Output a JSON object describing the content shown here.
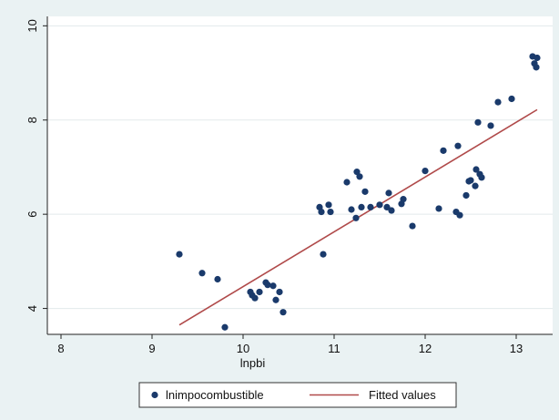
{
  "chart_data": {
    "type": "scatter",
    "xlabel": "lnpbi",
    "ylabel": "",
    "xlim": [
      7.85,
      13.4
    ],
    "ylim": [
      3.45,
      10.2
    ],
    "x_ticks": [
      8,
      9,
      10,
      11,
      12,
      13
    ],
    "y_ticks": [
      4,
      6,
      8,
      10
    ],
    "grid": "horizontal",
    "legend_position": "bottom",
    "background_color": "#eaf2f3",
    "plot_background": "#ffffff",
    "series": [
      {
        "name": "lnimpocombustible",
        "kind": "scatter",
        "color": "#1a3a6b",
        "points": [
          {
            "x": 9.3,
            "y": 5.15
          },
          {
            "x": 9.55,
            "y": 4.75
          },
          {
            "x": 9.72,
            "y": 4.62
          },
          {
            "x": 9.8,
            "y": 3.6
          },
          {
            "x": 10.08,
            "y": 4.35
          },
          {
            "x": 10.1,
            "y": 4.28
          },
          {
            "x": 10.13,
            "y": 4.22
          },
          {
            "x": 10.18,
            "y": 4.35
          },
          {
            "x": 10.25,
            "y": 4.55
          },
          {
            "x": 10.27,
            "y": 4.5
          },
          {
            "x": 10.33,
            "y": 4.48
          },
          {
            "x": 10.36,
            "y": 4.18
          },
          {
            "x": 10.4,
            "y": 4.35
          },
          {
            "x": 10.44,
            "y": 3.92
          },
          {
            "x": 10.84,
            "y": 6.15
          },
          {
            "x": 10.86,
            "y": 6.05
          },
          {
            "x": 10.88,
            "y": 5.15
          },
          {
            "x": 10.94,
            "y": 6.2
          },
          {
            "x": 10.96,
            "y": 6.05
          },
          {
            "x": 11.14,
            "y": 6.68
          },
          {
            "x": 11.19,
            "y": 6.1
          },
          {
            "x": 11.24,
            "y": 5.92
          },
          {
            "x": 11.25,
            "y": 6.9
          },
          {
            "x": 11.28,
            "y": 6.8
          },
          {
            "x": 11.3,
            "y": 6.15
          },
          {
            "x": 11.34,
            "y": 6.48
          },
          {
            "x": 11.4,
            "y": 6.15
          },
          {
            "x": 11.5,
            "y": 6.2
          },
          {
            "x": 11.58,
            "y": 6.15
          },
          {
            "x": 11.6,
            "y": 6.45
          },
          {
            "x": 11.63,
            "y": 6.08
          },
          {
            "x": 11.74,
            "y": 6.22
          },
          {
            "x": 11.76,
            "y": 6.32
          },
          {
            "x": 11.86,
            "y": 5.75
          },
          {
            "x": 12.0,
            "y": 6.92
          },
          {
            "x": 12.15,
            "y": 6.12
          },
          {
            "x": 12.2,
            "y": 7.35
          },
          {
            "x": 12.34,
            "y": 6.05
          },
          {
            "x": 12.36,
            "y": 7.45
          },
          {
            "x": 12.38,
            "y": 5.98
          },
          {
            "x": 12.45,
            "y": 6.4
          },
          {
            "x": 12.48,
            "y": 6.7
          },
          {
            "x": 12.5,
            "y": 6.72
          },
          {
            "x": 12.55,
            "y": 6.6
          },
          {
            "x": 12.56,
            "y": 6.95
          },
          {
            "x": 12.58,
            "y": 7.95
          },
          {
            "x": 12.6,
            "y": 6.85
          },
          {
            "x": 12.62,
            "y": 6.78
          },
          {
            "x": 12.72,
            "y": 7.88
          },
          {
            "x": 12.8,
            "y": 8.38
          },
          {
            "x": 12.95,
            "y": 8.45
          },
          {
            "x": 13.18,
            "y": 9.35
          },
          {
            "x": 13.2,
            "y": 9.2
          },
          {
            "x": 13.22,
            "y": 9.12
          },
          {
            "x": 13.23,
            "y": 9.32
          }
        ]
      },
      {
        "name": "Fitted values",
        "kind": "line",
        "color": "#b04a4a",
        "points": [
          {
            "x": 9.3,
            "y": 3.65
          },
          {
            "x": 13.23,
            "y": 8.22
          }
        ]
      }
    ]
  }
}
